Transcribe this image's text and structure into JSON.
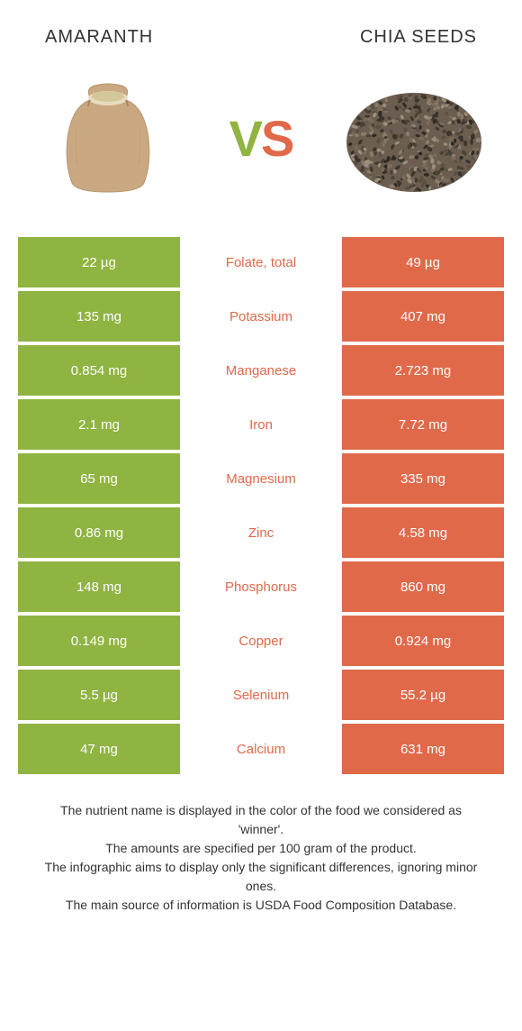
{
  "header": {
    "left_title": "Amaranth",
    "right_title": "Chia seeds"
  },
  "colors": {
    "left_bg": "#8fb441",
    "right_bg": "#e0694a",
    "left_accent": "#8fb441",
    "right_accent": "#e0694a",
    "text_white": "#ffffff"
  },
  "vs": {
    "v": "V",
    "s": "S"
  },
  "rows": [
    {
      "left": "22 µg",
      "label": "Folate, total",
      "right": "49 µg",
      "winner": "right"
    },
    {
      "left": "135 mg",
      "label": "Potassium",
      "right": "407 mg",
      "winner": "right"
    },
    {
      "left": "0.854 mg",
      "label": "Manganese",
      "right": "2.723 mg",
      "winner": "right"
    },
    {
      "left": "2.1 mg",
      "label": "Iron",
      "right": "7.72 mg",
      "winner": "right"
    },
    {
      "left": "65 mg",
      "label": "Magnesium",
      "right": "335 mg",
      "winner": "right"
    },
    {
      "left": "0.86 mg",
      "label": "Zinc",
      "right": "4.58 mg",
      "winner": "right"
    },
    {
      "left": "148 mg",
      "label": "Phosphorus",
      "right": "860 mg",
      "winner": "right"
    },
    {
      "left": "0.149 mg",
      "label": "Copper",
      "right": "0.924 mg",
      "winner": "right"
    },
    {
      "left": "5.5 µg",
      "label": "Selenium",
      "right": "55.2 µg",
      "winner": "right"
    },
    {
      "left": "47 mg",
      "label": "Calcium",
      "right": "631 mg",
      "winner": "right"
    }
  ],
  "footer": {
    "line1": "The nutrient name is displayed in the color of the food we considered as 'winner'.",
    "line2": "The amounts are specified per 100 gram of the product.",
    "line3": "The infographic aims to display only the significant differences, ignoring minor ones.",
    "line4": "The main source of information is USDA Food Composition Database."
  }
}
